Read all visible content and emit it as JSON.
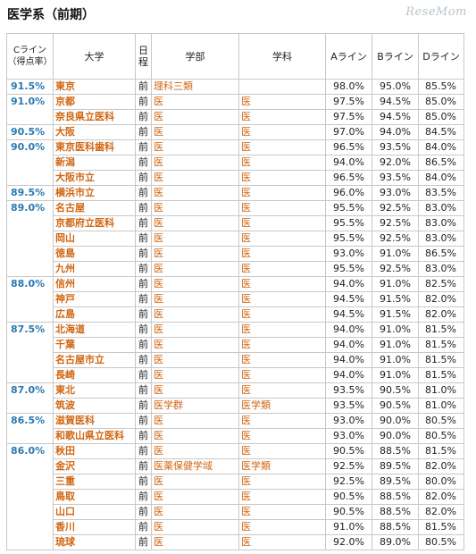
{
  "page_title": "医学系（前期）",
  "brand_logo": "ReseMom",
  "table": {
    "headers": {
      "c_line": "Cライン（得点率）",
      "university": "大学",
      "schedule": "日程",
      "department": "学部",
      "subject": "学科",
      "a_line": "Aライン",
      "b_line": "Bライン",
      "d_line": "Dライン"
    },
    "groups": [
      {
        "c_line": "91.5%",
        "rows": [
          {
            "university": "東京",
            "schedule": "前",
            "department": "理科三類",
            "subject": "",
            "a": "98.0%",
            "b": "95.0%",
            "d": "85.5%"
          }
        ]
      },
      {
        "c_line": "91.0%",
        "rows": [
          {
            "university": "京都",
            "schedule": "前",
            "department": "医",
            "subject": "医",
            "a": "97.5%",
            "b": "94.5%",
            "d": "85.0%"
          },
          {
            "university": "奈良県立医科",
            "schedule": "前",
            "department": "医",
            "subject": "医",
            "a": "97.5%",
            "b": "94.5%",
            "d": "85.0%"
          }
        ]
      },
      {
        "c_line": "90.5%",
        "rows": [
          {
            "university": "大阪",
            "schedule": "前",
            "department": "医",
            "subject": "医",
            "a": "97.0%",
            "b": "94.0%",
            "d": "84.5%"
          }
        ]
      },
      {
        "c_line": "90.0%",
        "rows": [
          {
            "university": "東京医科歯科",
            "schedule": "前",
            "department": "医",
            "subject": "医",
            "a": "96.5%",
            "b": "93.5%",
            "d": "84.0%"
          },
          {
            "university": "新潟",
            "schedule": "前",
            "department": "医",
            "subject": "医",
            "a": "94.0%",
            "b": "92.0%",
            "d": "86.5%"
          },
          {
            "university": "大阪市立",
            "schedule": "前",
            "department": "医",
            "subject": "医",
            "a": "96.5%",
            "b": "93.5%",
            "d": "84.0%"
          }
        ]
      },
      {
        "c_line": "89.5%",
        "rows": [
          {
            "university": "横浜市立",
            "schedule": "前",
            "department": "医",
            "subject": "医",
            "a": "96.0%",
            "b": "93.0%",
            "d": "83.5%"
          }
        ]
      },
      {
        "c_line": "89.0%",
        "rows": [
          {
            "university": "名古屋",
            "schedule": "前",
            "department": "医",
            "subject": "医",
            "a": "95.5%",
            "b": "92.5%",
            "d": "83.0%"
          },
          {
            "university": "京都府立医科",
            "schedule": "前",
            "department": "医",
            "subject": "医",
            "a": "95.5%",
            "b": "92.5%",
            "d": "83.0%"
          },
          {
            "university": "岡山",
            "schedule": "前",
            "department": "医",
            "subject": "医",
            "a": "95.5%",
            "b": "92.5%",
            "d": "83.0%"
          },
          {
            "university": "徳島",
            "schedule": "前",
            "department": "医",
            "subject": "医",
            "a": "93.0%",
            "b": "91.0%",
            "d": "86.5%"
          },
          {
            "university": "九州",
            "schedule": "前",
            "department": "医",
            "subject": "医",
            "a": "95.5%",
            "b": "92.5%",
            "d": "83.0%"
          }
        ]
      },
      {
        "c_line": "88.0%",
        "rows": [
          {
            "university": "信州",
            "schedule": "前",
            "department": "医",
            "subject": "医",
            "a": "94.0%",
            "b": "91.0%",
            "d": "82.5%"
          },
          {
            "university": "神戸",
            "schedule": "前",
            "department": "医",
            "subject": "医",
            "a": "94.5%",
            "b": "91.5%",
            "d": "82.0%"
          },
          {
            "university": "広島",
            "schedule": "前",
            "department": "医",
            "subject": "医",
            "a": "94.5%",
            "b": "91.5%",
            "d": "82.0%"
          }
        ]
      },
      {
        "c_line": "87.5%",
        "rows": [
          {
            "university": "北海道",
            "schedule": "前",
            "department": "医",
            "subject": "医",
            "a": "94.0%",
            "b": "91.0%",
            "d": "81.5%"
          },
          {
            "university": "千葉",
            "schedule": "前",
            "department": "医",
            "subject": "医",
            "a": "94.0%",
            "b": "91.0%",
            "d": "81.5%"
          },
          {
            "university": "名古屋市立",
            "schedule": "前",
            "department": "医",
            "subject": "医",
            "a": "94.0%",
            "b": "91.0%",
            "d": "81.5%"
          },
          {
            "university": "長崎",
            "schedule": "前",
            "department": "医",
            "subject": "医",
            "a": "94.0%",
            "b": "91.0%",
            "d": "81.5%"
          }
        ]
      },
      {
        "c_line": "87.0%",
        "rows": [
          {
            "university": "東北",
            "schedule": "前",
            "department": "医",
            "subject": "医",
            "a": "93.5%",
            "b": "90.5%",
            "d": "81.0%"
          },
          {
            "university": "筑波",
            "schedule": "前",
            "department": "医学群",
            "subject": "医学類",
            "a": "93.5%",
            "b": "90.5%",
            "d": "81.0%"
          }
        ]
      },
      {
        "c_line": "86.5%",
        "rows": [
          {
            "university": "滋賀医科",
            "schedule": "前",
            "department": "医",
            "subject": "医",
            "a": "93.0%",
            "b": "90.0%",
            "d": "80.5%"
          },
          {
            "university": "和歌山県立医科",
            "schedule": "前",
            "department": "医",
            "subject": "医",
            "a": "93.0%",
            "b": "90.0%",
            "d": "80.5%"
          }
        ]
      },
      {
        "c_line": "86.0%",
        "rows": [
          {
            "university": "秋田",
            "schedule": "前",
            "department": "医",
            "subject": "医",
            "a": "90.5%",
            "b": "88.5%",
            "d": "81.5%"
          },
          {
            "university": "金沢",
            "schedule": "前",
            "department": "医薬保健学域",
            "subject": "医学類",
            "a": "92.5%",
            "b": "89.5%",
            "d": "82.0%"
          },
          {
            "university": "三重",
            "schedule": "前",
            "department": "医",
            "subject": "医",
            "a": "92.5%",
            "b": "89.5%",
            "d": "80.0%"
          },
          {
            "university": "鳥取",
            "schedule": "前",
            "department": "医",
            "subject": "医",
            "a": "90.5%",
            "b": "88.5%",
            "d": "82.0%"
          },
          {
            "university": "山口",
            "schedule": "前",
            "department": "医",
            "subject": "医",
            "a": "90.5%",
            "b": "88.5%",
            "d": "82.0%"
          },
          {
            "university": "香川",
            "schedule": "前",
            "department": "医",
            "subject": "医",
            "a": "91.0%",
            "b": "88.5%",
            "d": "81.5%"
          },
          {
            "university": "琉球",
            "schedule": "前",
            "department": "医",
            "subject": "医",
            "a": "92.0%",
            "b": "89.0%",
            "d": "80.5%"
          }
        ]
      }
    ]
  }
}
